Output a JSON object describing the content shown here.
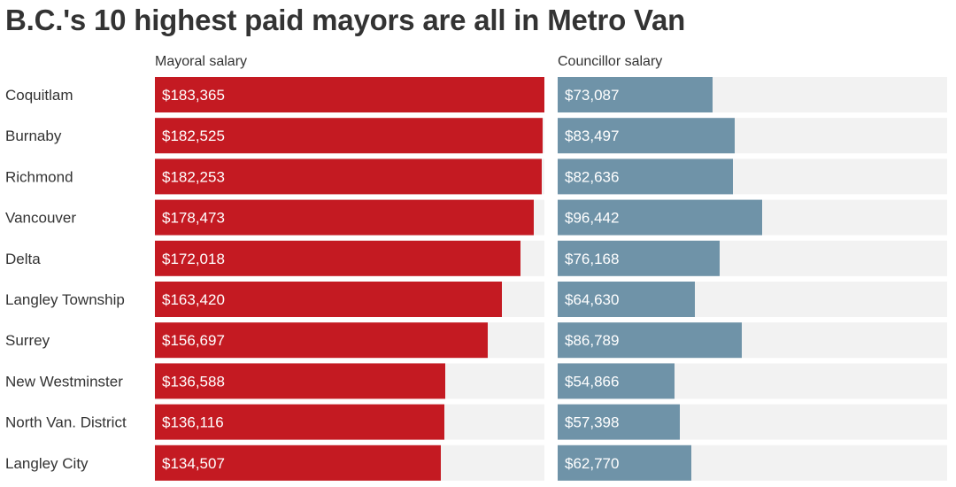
{
  "chart_data": {
    "type": "bar",
    "title": "B.C.'s 10 highest paid mayors are all in Metro Van",
    "categories": [
      "Coquitlam",
      "Burnaby",
      "Richmond",
      "Vancouver",
      "Delta",
      "Langley Township",
      "Surrey",
      "New Westminster",
      "North Van. District",
      "Langley City"
    ],
    "series": [
      {
        "name": "Mayoral salary",
        "color": "#c41a22",
        "values": [
          183365,
          182525,
          182253,
          178473,
          172018,
          163420,
          156697,
          136588,
          136116,
          134507
        ],
        "labels": [
          "$183,365",
          "$182,525",
          "$182,253",
          "$178,473",
          "$172,018",
          "$163,420",
          "$156,697",
          "$136,588",
          "$136,116",
          "$134,507"
        ],
        "xlim": [
          0,
          183365
        ]
      },
      {
        "name": "Councillor salary",
        "color": "#6f93a8",
        "values": [
          73087,
          83497,
          82636,
          96442,
          76168,
          64630,
          86789,
          54866,
          57398,
          62770
        ],
        "labels": [
          "$73,087",
          "$83,497",
          "$82,636",
          "$96,442",
          "$76,168",
          "$64,630",
          "$86,789",
          "$54,866",
          "$57,398",
          "$62,770"
        ],
        "xlim": [
          0,
          183365
        ]
      }
    ],
    "track_color": "#f2f2f2"
  }
}
